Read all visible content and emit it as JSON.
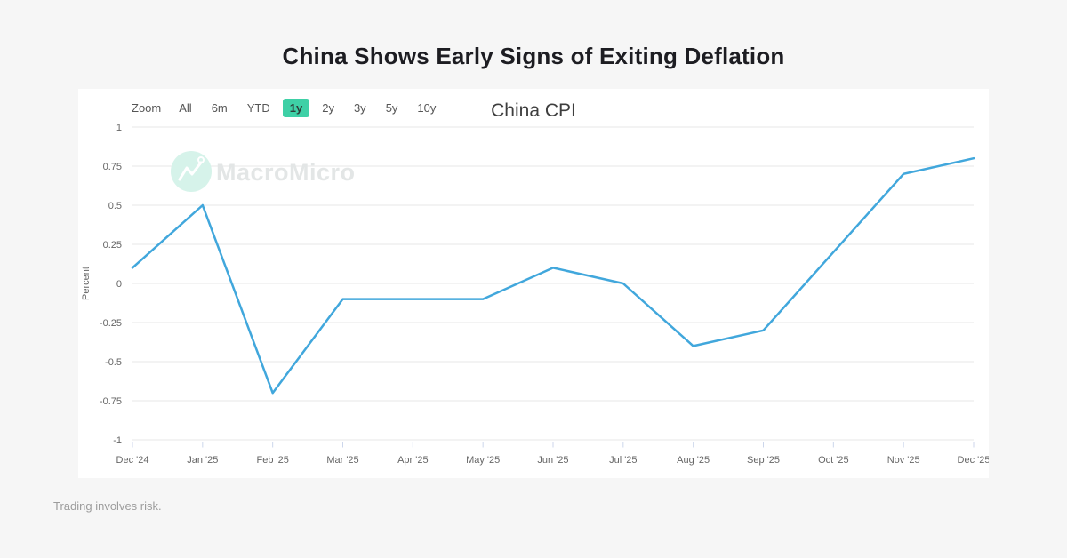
{
  "page": {
    "title": "China Shows Early Signs of Exiting Deflation",
    "footer": "Trading involves risk.",
    "background": "#f6f6f6",
    "card_background": "#ffffff"
  },
  "colors": {
    "accent_green": "#3ed0a6",
    "line_blue": "#41a7dc",
    "grid": "#e7e7e7",
    "axis": "#ccd6eb",
    "axis_text": "#666666",
    "watermark_circle": "#d6f3ea",
    "watermark_text": "#e3e6e6"
  },
  "toolbar": {
    "zoom_label": "Zoom",
    "buttons": [
      {
        "label": "All",
        "selected": false
      },
      {
        "label": "6m",
        "selected": false
      },
      {
        "label": "YTD",
        "selected": false
      },
      {
        "label": "1y",
        "selected": true
      },
      {
        "label": "2y",
        "selected": false
      },
      {
        "label": "3y",
        "selected": false
      },
      {
        "label": "5y",
        "selected": false
      },
      {
        "label": "10y",
        "selected": false
      }
    ]
  },
  "watermark": {
    "text": "MacroMicro",
    "icon": "macromicro-mountain-logo-icon"
  },
  "chart_data": {
    "type": "line",
    "title": "China CPI",
    "xlabel": "",
    "ylabel": "Percent",
    "categories": [
      "Dec '24",
      "Jan '25",
      "Feb '25",
      "Mar '25",
      "Apr '25",
      "May '25",
      "Jun '25",
      "Jul '25",
      "Aug '25",
      "Sep '25",
      "Oct '25",
      "Nov '25",
      "Dec '25"
    ],
    "series": [
      {
        "name": "China CPI",
        "color": "#41a7dc",
        "values": [
          0.1,
          0.5,
          -0.7,
          -0.1,
          -0.1,
          -0.1,
          0.1,
          0,
          -0.4,
          -0.3,
          0.2,
          0.7,
          0.8
        ]
      }
    ],
    "ylim": [
      -1,
      1
    ],
    "yticks": [
      1,
      0.75,
      0.5,
      0.25,
      0,
      -0.25,
      -0.5,
      -0.75,
      -1
    ],
    "ytick_labels": [
      "1",
      "0.75",
      "0.5",
      "0.25",
      "0",
      "-0.25",
      "-0.5",
      "-0.75",
      "-1"
    ],
    "grid": true,
    "legend_position": "none"
  }
}
